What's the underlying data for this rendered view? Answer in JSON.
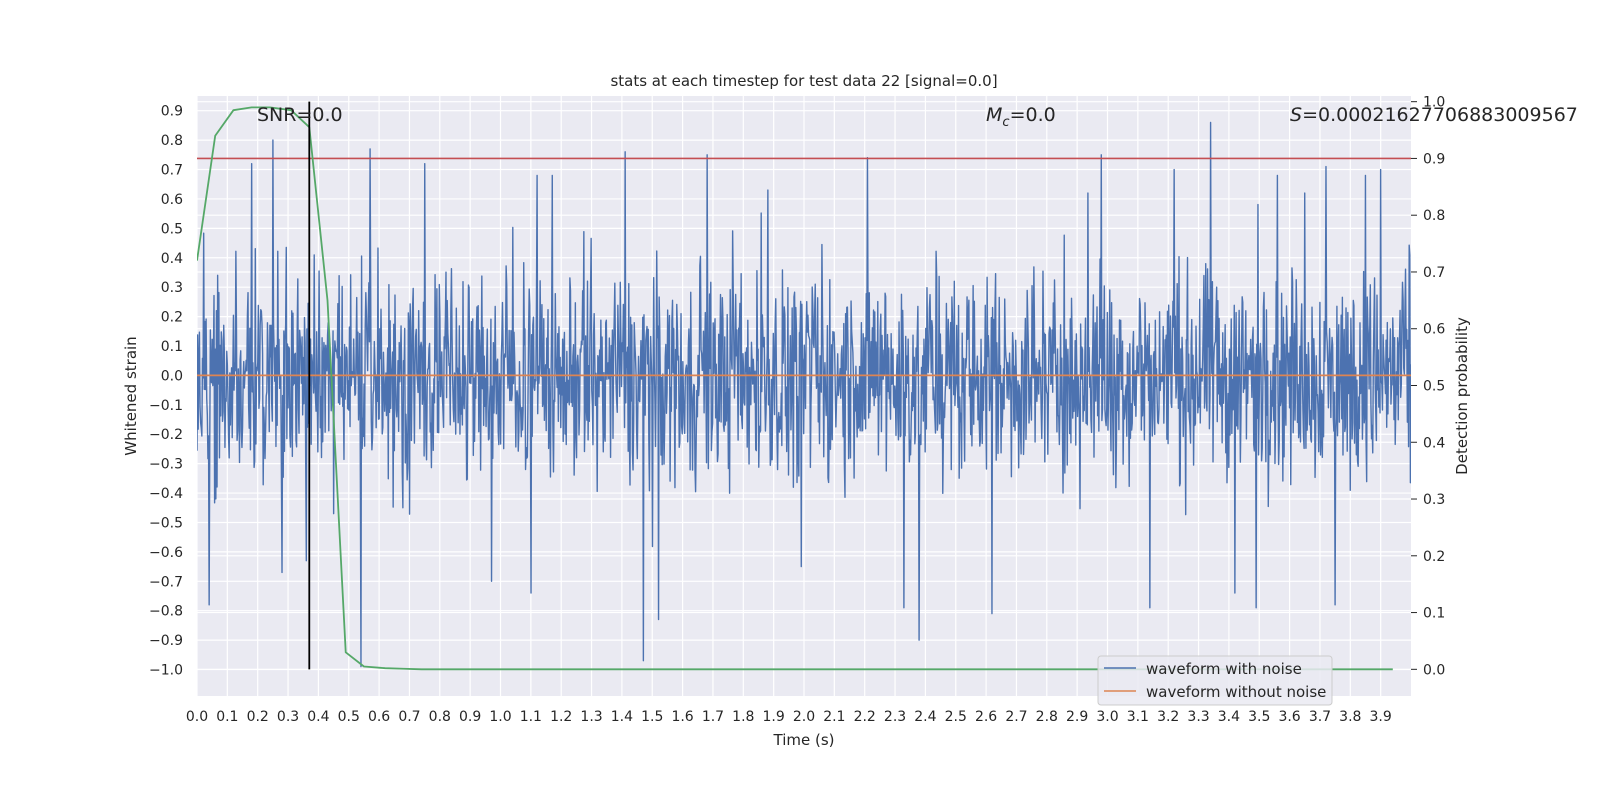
{
  "chart_data": {
    "type": "line",
    "title": "stats at each timestep for test data 22 [signal=0.0]",
    "xlabel": "Time (s)",
    "ylabel": "Whitened strain",
    "y2label": "Detection probability",
    "xlim": [
      0.0,
      4.0
    ],
    "ylim": [
      -1.09,
      0.95
    ],
    "y2lim": [
      -0.047,
      1.01
    ],
    "x_ticks": [
      "0.0",
      "0.1",
      "0.2",
      "0.3",
      "0.4",
      "0.5",
      "0.6",
      "0.7",
      "0.8",
      "0.9",
      "1.0",
      "1.1",
      "1.2",
      "1.3",
      "1.4",
      "1.5",
      "1.6",
      "1.7",
      "1.8",
      "1.9",
      "2.0",
      "2.1",
      "2.2",
      "2.3",
      "2.4",
      "2.5",
      "2.6",
      "2.7",
      "2.8",
      "2.9",
      "3.0",
      "3.1",
      "3.2",
      "3.3",
      "3.4",
      "3.5",
      "3.6",
      "3.7",
      "3.8",
      "3.9"
    ],
    "y_ticks": [
      "0.9",
      "0.8",
      "0.7",
      "0.6",
      "0.5",
      "0.4",
      "0.3",
      "0.2",
      "0.1",
      "0.0",
      "−0.1",
      "−0.2",
      "−0.3",
      "−0.4",
      "−0.5",
      "−0.6",
      "−0.7",
      "−0.8",
      "−0.9",
      "−1.0"
    ],
    "y2_ticks": [
      "1.0",
      "0.9",
      "0.8",
      "0.7",
      "0.6",
      "0.5",
      "0.4",
      "0.3",
      "0.2",
      "0.1",
      "0.0"
    ],
    "grid": true,
    "legend_position": "bottom-right",
    "series": [
      {
        "name": "waveform with noise",
        "color": "#4c72b0",
        "axis": "left",
        "kind": "noise",
        "sample_count": 2000,
        "typical_range": [
          -0.45,
          0.45
        ],
        "peaks": [
          [
            0.25,
            0.8
          ],
          [
            0.18,
            0.72
          ],
          [
            0.04,
            -0.78
          ],
          [
            0.28,
            -0.67
          ],
          [
            0.36,
            -0.63
          ],
          [
            0.45,
            -0.47
          ],
          [
            0.54,
            -0.99
          ],
          [
            0.57,
            0.77
          ],
          [
            0.75,
            0.72
          ],
          [
            1.12,
            0.68
          ],
          [
            1.17,
            0.68
          ],
          [
            1.41,
            0.76
          ],
          [
            1.47,
            -0.97
          ],
          [
            1.52,
            -0.83
          ],
          [
            1.68,
            0.75
          ],
          [
            1.88,
            0.63
          ],
          [
            2.21,
            0.74
          ],
          [
            2.33,
            -0.79
          ],
          [
            2.38,
            -0.9
          ],
          [
            2.62,
            -0.81
          ],
          [
            2.98,
            0.75
          ],
          [
            3.22,
            0.7
          ],
          [
            3.34,
            0.86
          ],
          [
            3.42,
            -0.74
          ],
          [
            3.56,
            0.68
          ],
          [
            3.65,
            0.62
          ],
          [
            3.72,
            0.71
          ],
          [
            3.85,
            0.68
          ],
          [
            3.9,
            0.7
          ],
          [
            1.1,
            -0.74
          ],
          [
            0.97,
            -0.7
          ],
          [
            1.99,
            -0.65
          ],
          [
            3.14,
            -0.79
          ],
          [
            3.49,
            -0.79
          ],
          [
            3.75,
            -0.78
          ]
        ]
      },
      {
        "name": "waveform without noise",
        "color": "#dd8452",
        "axis": "left",
        "x": [
          0.0,
          4.0
        ],
        "y": [
          0.0,
          0.0
        ]
      },
      {
        "name": "Detection probability",
        "color": "#55a868",
        "axis": "right",
        "x": [
          0.0,
          0.06,
          0.12,
          0.18,
          0.24,
          0.31,
          0.37,
          0.43,
          0.49,
          0.55,
          0.62,
          0.68,
          0.74,
          0.8,
          0.86,
          0.92,
          1.0,
          1.5,
          2.0,
          2.5,
          3.0,
          3.5,
          3.94
        ],
        "y": [
          0.72,
          0.94,
          0.985,
          0.99,
          0.99,
          0.985,
          0.955,
          0.65,
          0.03,
          0.005,
          0.002,
          0.001,
          0.0,
          0.0,
          0.0,
          0.0,
          0.0,
          0.0,
          0.0,
          0.0,
          0.0,
          0.0,
          0.0
        ]
      }
    ],
    "threshold": {
      "value": 0.9,
      "axis": "right",
      "color": "#c44e52"
    },
    "marker": {
      "x": 0.37,
      "color": "#000000"
    },
    "annotations": {
      "snr": "SNR=0.0",
      "mc_symbol": "M",
      "mc_sub": "c",
      "mc_value": "=0.0",
      "s_symbol": "S",
      "s_value": "=0.00021627706883009567"
    }
  }
}
